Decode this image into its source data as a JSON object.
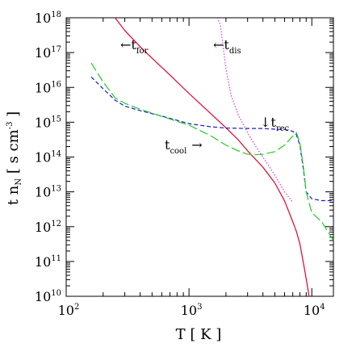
{
  "chart_data": {
    "type": "line",
    "title": "",
    "xlabel": "T [ K ]",
    "ylabel": "t n",
    "ylabel_sub": "N",
    "ylabel_units": "[ s cm",
    "ylabel_units_exp": "-3",
    "ylabel_units_close": "]",
    "xscale": "log",
    "yscale": "log",
    "xlim": [
      100,
      15000
    ],
    "ylim": [
      10000000000.0,
      1e+18
    ],
    "grid": false,
    "legend": "none",
    "x_ticks": [
      {
        "value": 100,
        "base": "10",
        "exp": "2"
      },
      {
        "value": 1000,
        "base": "10",
        "exp": "3"
      },
      {
        "value": 10000,
        "base": "10",
        "exp": "4"
      }
    ],
    "y_ticks": [
      {
        "value": 10000000000.0,
        "base": "10",
        "exp": "10"
      },
      {
        "value": 100000000000.0,
        "base": "10",
        "exp": "11"
      },
      {
        "value": 1000000000000.0,
        "base": "10",
        "exp": "12"
      },
      {
        "value": 10000000000000.0,
        "base": "10",
        "exp": "13"
      },
      {
        "value": 100000000000000.0,
        "base": "10",
        "exp": "14"
      },
      {
        "value": 1000000000000000.0,
        "base": "10",
        "exp": "15"
      },
      {
        "value": 1e+16,
        "base": "10",
        "exp": "16"
      },
      {
        "value": 1e+17,
        "base": "10",
        "exp": "17"
      },
      {
        "value": 1e+18,
        "base": "10",
        "exp": "18"
      }
    ],
    "series": [
      {
        "name": "t_for",
        "color": "#e8002a",
        "style": "solid",
        "points": [
          [
            250,
            1e+18
          ],
          [
            300,
            4.3e+17
          ],
          [
            400,
            1.48e+17
          ],
          [
            500,
            6.9e+16
          ],
          [
            700,
            2.26e+16
          ],
          [
            1000,
            6700000000000000.0
          ],
          [
            1500,
            1780000000000000.0
          ],
          [
            2000,
            690000000000000.0
          ],
          [
            2500,
            320000000000000.0
          ],
          [
            3000,
            151000000000000.0
          ],
          [
            4000,
            51000000000000.0
          ],
          [
            5000,
            18000000000000.0
          ],
          [
            6000,
            5500000000000.0
          ],
          [
            7000,
            1380000000000.0
          ],
          [
            7500,
            720000000000.0
          ],
          [
            8000,
            320000000000.0
          ],
          [
            8500,
            100000000000.0
          ],
          [
            9000,
            32000000000.0
          ],
          [
            9500,
            10000000000.0
          ]
        ]
      },
      {
        "name": "t_dis",
        "color": "#e030e0",
        "style": "dotted",
        "points": [
          [
            1700,
            1e+18
          ],
          [
            1800,
            6.3e+17
          ],
          [
            2000,
            3.4e+16
          ],
          [
            2200,
            6000000000000000.0
          ],
          [
            2500,
            1700000000000000.0
          ],
          [
            3000,
            500000000000000.0
          ],
          [
            3500,
            200000000000000.0
          ],
          [
            4000,
            100000000000000.0
          ],
          [
            5000,
            30000000000000.0
          ],
          [
            6000,
            10000000000000.0
          ],
          [
            7000,
            5000000000000.0
          ]
        ]
      },
      {
        "name": "t_rec",
        "color": "#1a1ad8",
        "style": "dashed",
        "points": [
          [
            160,
            2e+16
          ],
          [
            200,
            9100000000000000.0
          ],
          [
            250,
            4300000000000000.0
          ],
          [
            300,
            2900000000000000.0
          ],
          [
            400,
            2150000000000000.0
          ],
          [
            600,
            1500000000000000.0
          ],
          [
            1000,
            910000000000000.0
          ],
          [
            1500,
            740000000000000.0
          ],
          [
            2000,
            680000000000000.0
          ],
          [
            3000,
            660000000000000.0
          ],
          [
            4000,
            660000000000000.0
          ],
          [
            5000,
            630000000000000.0
          ],
          [
            6000,
            620000000000000.0
          ],
          [
            7000,
            550000000000000.0
          ],
          [
            7500,
            430000000000000.0
          ],
          [
            8000,
            220000000000000.0
          ],
          [
            8500,
            50000000000000.0
          ],
          [
            9000,
            10000000000000.0
          ],
          [
            10000,
            6300000000000.0
          ],
          [
            12000,
            5600000000000.0
          ],
          [
            15000,
            5600000000000.0
          ]
        ]
      },
      {
        "name": "t_cool",
        "color": "#22cc22",
        "style": "long-dashed",
        "points": [
          [
            160,
            5e+16
          ],
          [
            200,
            1.43e+16
          ],
          [
            250,
            5000000000000000.0
          ],
          [
            300,
            3500000000000000.0
          ],
          [
            400,
            2350000000000000.0
          ],
          [
            600,
            1480000000000000.0
          ],
          [
            1000,
            820000000000000.0
          ],
          [
            1500,
            410000000000000.0
          ],
          [
            2000,
            220000000000000.0
          ],
          [
            2500,
            151000000000000.0
          ],
          [
            3000,
            121000000000000.0
          ],
          [
            3500,
            117000000000000.0
          ],
          [
            4000,
            120000000000000.0
          ],
          [
            5000,
            143000000000000.0
          ],
          [
            6000,
            220000000000000.0
          ],
          [
            7000,
            400000000000000.0
          ],
          [
            7500,
            500000000000000.0
          ],
          [
            8000,
            250000000000000.0
          ],
          [
            8500,
            60000000000000.0
          ],
          [
            9000,
            10000000000000.0
          ],
          [
            10000,
            2500000000000.0
          ],
          [
            12000,
            1400000000000.0
          ],
          [
            15000,
            400000000000.0
          ]
        ]
      }
    ],
    "annotations": [
      {
        "id": "for",
        "arrow": "←",
        "text": "t",
        "sub": "for"
      },
      {
        "id": "dis",
        "arrow": "←",
        "text": "t",
        "sub": "dis"
      },
      {
        "id": "rec",
        "arrow": "↓",
        "text": "t",
        "sub": "rec"
      },
      {
        "id": "cool",
        "arrow": "→",
        "text": "t",
        "sub": "cool"
      }
    ]
  }
}
